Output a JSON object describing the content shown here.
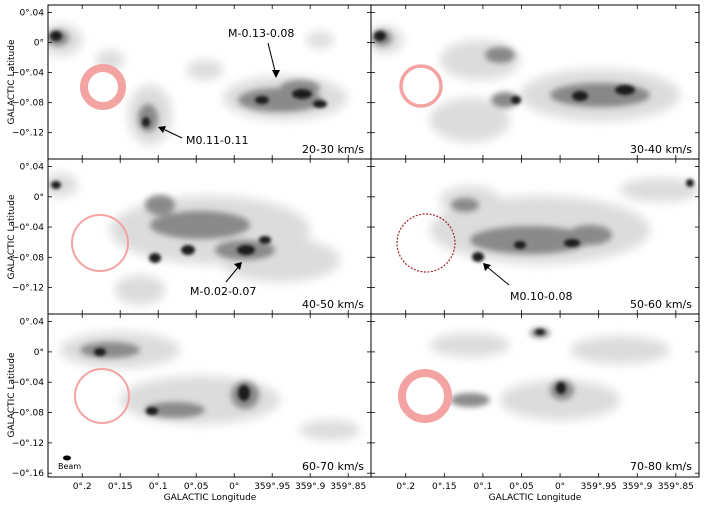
{
  "chart_data": [
    {
      "type": "heatmap",
      "title": "",
      "panel_label": "20-30 km/s",
      "xlabel": "",
      "ylabel": "GALACTIC Latitude",
      "circle_style": "thick",
      "sources": [
        {
          "label": "M-0.13-0.08",
          "l": -0.13,
          "b": -0.08
        },
        {
          "label": "M0.11-0.11",
          "l": 0.11,
          "b": -0.11
        }
      ]
    },
    {
      "type": "heatmap",
      "title": "",
      "panel_label": "30-40 km/s",
      "xlabel": "",
      "ylabel": "",
      "circle_style": "medium",
      "sources": []
    },
    {
      "type": "heatmap",
      "title": "",
      "panel_label": "40-50 km/s",
      "xlabel": "",
      "ylabel": "GALACTIC Latitude",
      "circle_style": "thin",
      "sources": [
        {
          "label": "M-0.02-0.07",
          "l": -0.02,
          "b": -0.07
        }
      ]
    },
    {
      "type": "heatmap",
      "title": "",
      "panel_label": "50-60 km/s",
      "xlabel": "",
      "ylabel": "",
      "circle_style": "dashed",
      "sources": [
        {
          "label": "M0.10-0.08",
          "l": 0.1,
          "b": -0.08
        }
      ]
    },
    {
      "type": "heatmap",
      "title": "",
      "panel_label": "60-70 km/s",
      "xlabel": "GALACTIC Longitude",
      "ylabel": "GALACTIC Latitude",
      "circle_style": "thin",
      "beam_label": "Beam",
      "sources": []
    },
    {
      "type": "heatmap",
      "title": "",
      "panel_label": "70-80 km/s",
      "xlabel": "GALACTIC Longitude",
      "ylabel": "",
      "circle_style": "thick",
      "sources": []
    }
  ],
  "axes": {
    "x_ticks": [
      "0°.2",
      "0°.15",
      "0°.1",
      "0°.05",
      "0°",
      "359°.95",
      "359°.9",
      "359°.85"
    ],
    "x_tick_values": [
      0.2,
      0.15,
      0.1,
      0.05,
      0.0,
      -0.05,
      -0.1,
      -0.15
    ],
    "y_ticks": [
      "0°.04",
      "0°",
      "−0°.04",
      "−0°.08",
      "−0°.12"
    ],
    "y_tick_values": [
      0.04,
      0.0,
      -0.04,
      -0.08,
      -0.12
    ],
    "bottom_extra_y_tick": "−0°.16",
    "bottom_extra_y_value": -0.16,
    "xlim": [
      0.245,
      -0.18
    ],
    "ylim_top_rows": [
      -0.155,
      0.05
    ],
    "ylim_bottom_row": [
      -0.165,
      0.05
    ]
  },
  "colors": {
    "circle": "#f4a3a3",
    "circle_dashed": "#a0262e",
    "emission_dark": "#1a1a1a",
    "emission_light": "#d2d2d2",
    "frame": "#000000"
  }
}
